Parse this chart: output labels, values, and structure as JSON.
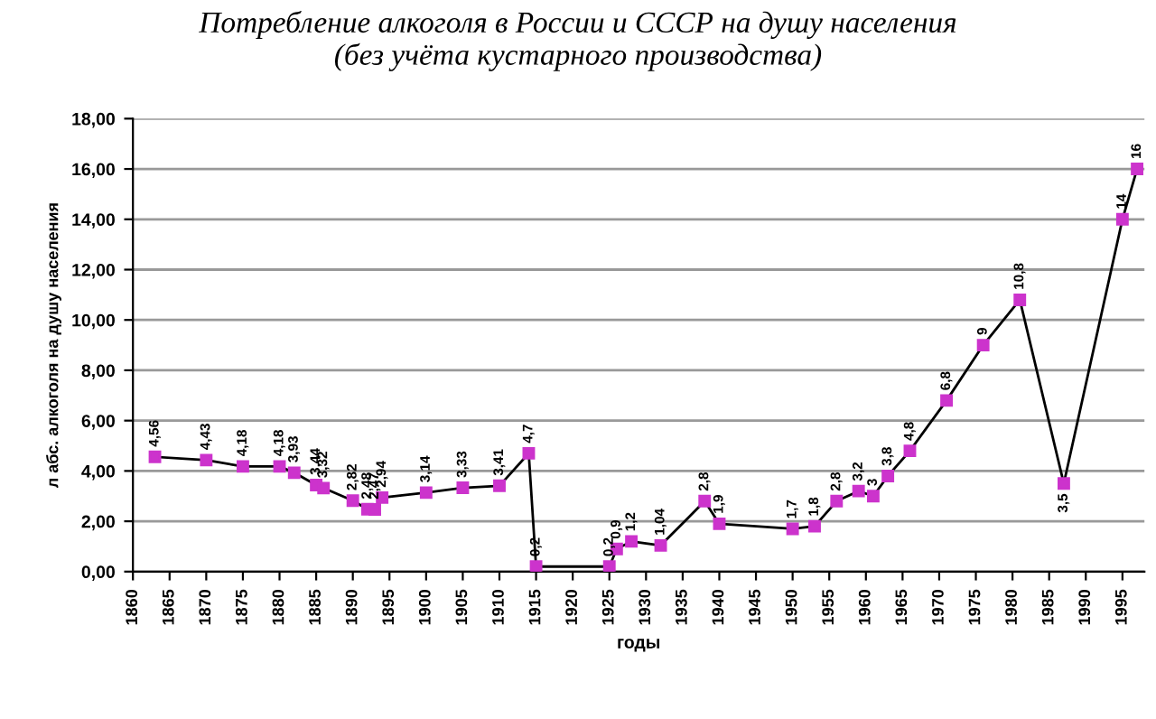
{
  "chart_data": {
    "type": "line",
    "title": "Потребление алкоголя в России и СССР на душу населения\n(без учёта кустарного производства)",
    "xlabel": "годы",
    "ylabel": "л абс. алкоголя на душу населения",
    "x": [
      1863,
      1870,
      1875,
      1880,
      1882,
      1885,
      1886,
      1890,
      1892,
      1893,
      1894,
      1900,
      1905,
      1910,
      1914,
      1915,
      1925,
      1926,
      1928,
      1932,
      1938,
      1940,
      1950,
      1953,
      1956,
      1959,
      1961,
      1963,
      1966,
      1971,
      1976,
      1981,
      1987,
      1995,
      1997
    ],
    "series": [
      {
        "color": "#cc33cc",
        "values": [
          4.56,
          4.43,
          4.18,
          4.18,
          3.93,
          3.44,
          3.32,
          2.82,
          2.48,
          2.47,
          2.94,
          3.14,
          3.33,
          3.41,
          4.7,
          0.2,
          0.2,
          0.9,
          1.2,
          1.04,
          2.8,
          1.9,
          1.7,
          1.8,
          2.8,
          3.2,
          3.0,
          3.8,
          4.8,
          6.8,
          9,
          10.8,
          3.5,
          14,
          16
        ],
        "value_labels": [
          "4,56",
          "4,43",
          "4,18",
          "4,18",
          "3,93",
          "3,44",
          "3,32",
          "2,82",
          "2,48",
          "2,47",
          "2,94",
          "3,14",
          "3,33",
          "3,41",
          "4,7",
          "0,2",
          "0,2",
          "0,9",
          "1,2",
          "1,04",
          "2,8",
          "1,9",
          "1,7",
          "1,8",
          "2,8",
          "3,2",
          "3",
          "3,8",
          "4,8",
          "6,8",
          "9",
          "10,8",
          "3,5",
          "14",
          "16"
        ]
      }
    ],
    "marker": "square",
    "grid": "y",
    "legend": false,
    "xlim": [
      1860,
      1998
    ],
    "xticks": [
      1860,
      1865,
      1870,
      1875,
      1880,
      1885,
      1890,
      1895,
      1900,
      1905,
      1910,
      1915,
      1920,
      1925,
      1930,
      1935,
      1940,
      1945,
      1950,
      1955,
      1960,
      1965,
      1970,
      1975,
      1980,
      1985,
      1990,
      1995
    ],
    "ylim": [
      0,
      18
    ],
    "yticks": [
      {
        "value": 0,
        "label": "0,00"
      },
      {
        "value": 2,
        "label": "2,00"
      },
      {
        "value": 4,
        "label": "4,00"
      },
      {
        "value": 6,
        "label": "6,00"
      },
      {
        "value": 8,
        "label": "8,00"
      },
      {
        "value": 10,
        "label": "10,00"
      },
      {
        "value": 12,
        "label": "12,00"
      },
      {
        "value": 14,
        "label": "14,00"
      },
      {
        "value": 16,
        "label": "16,00"
      },
      {
        "value": 18,
        "label": "18,00"
      }
    ]
  }
}
